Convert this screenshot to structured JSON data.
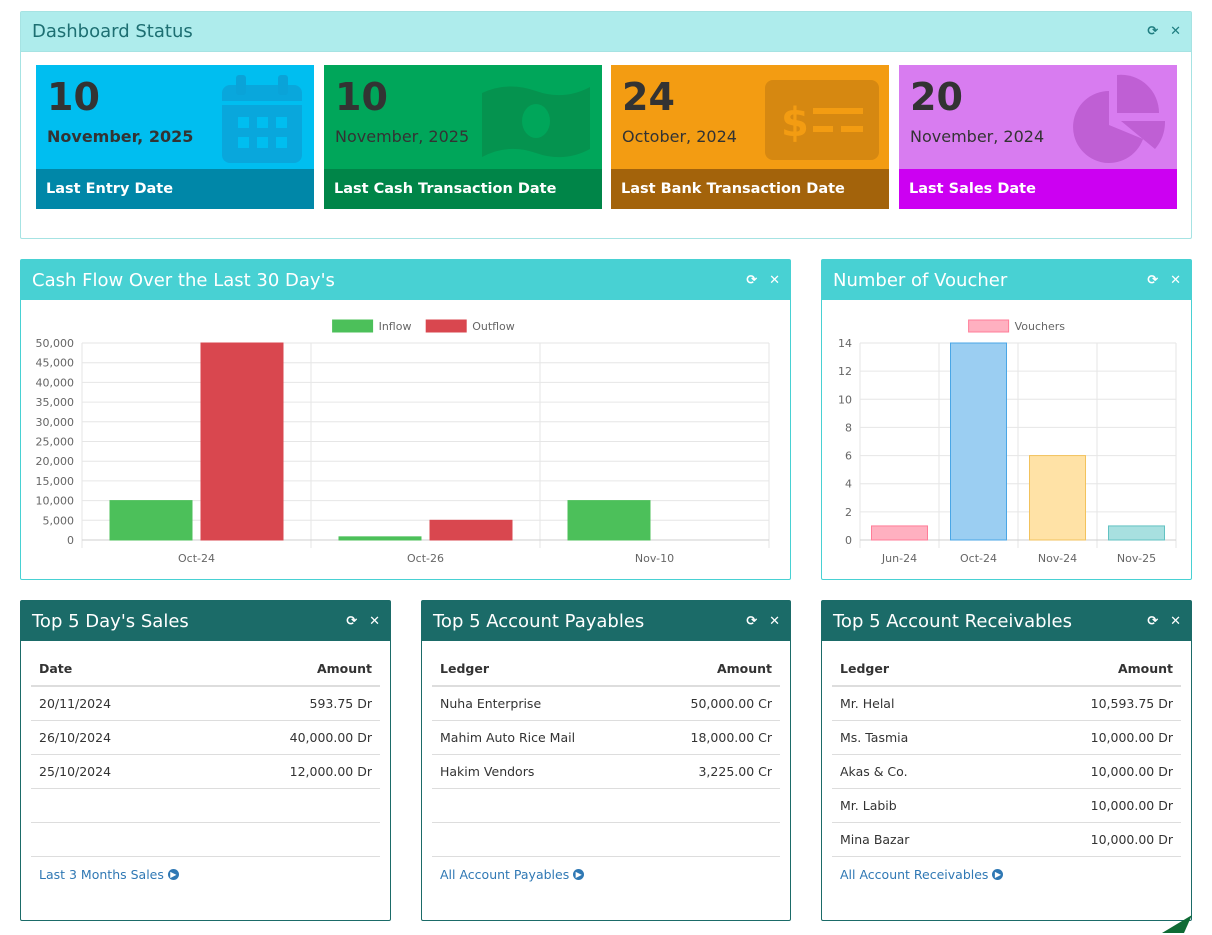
{
  "status_panel": {
    "title": "Dashboard Status",
    "cards": [
      {
        "day": "10",
        "month": "November, 2025",
        "label": "Last Entry Date",
        "color": "#00bef0",
        "footer_color": "#0087a8",
        "icon": "calendar-icon"
      },
      {
        "day": "10",
        "month": "November, 2025",
        "label": "Last Cash Transaction Date",
        "color": "#00a65a",
        "footer_color": "#008548",
        "icon": "money-icon"
      },
      {
        "day": "24",
        "month": "October, 2024",
        "label": "Last Bank Transaction Date",
        "color": "#f39c12",
        "footer_color": "#a3630b",
        "icon": "bank-card-icon"
      },
      {
        "day": "20",
        "month": "November, 2024",
        "label": "Last Sales Date",
        "color": "#d87cf0",
        "footer_color": "#cc00f2",
        "icon": "pie-chart-icon"
      }
    ]
  },
  "cashflow_panel": {
    "title": "Cash Flow Over the Last 30 Day's"
  },
  "voucher_panel": {
    "title": "Number of Voucher"
  },
  "chart_data": [
    {
      "type": "bar",
      "categories": [
        "Oct-24",
        "Oct-26",
        "Nov-10"
      ],
      "series": [
        {
          "name": "Inflow",
          "values": [
            10000,
            800,
            10000
          ],
          "color": "#4cc05a"
        },
        {
          "name": "Outflow",
          "values": [
            50000,
            5000,
            0
          ],
          "color": "#d9474f"
        }
      ],
      "ylim": [
        0,
        50000
      ],
      "yticks": [
        "0",
        "5,000",
        "10,000",
        "15,000",
        "20,000",
        "25,000",
        "30,000",
        "35,000",
        "40,000",
        "45,000",
        "50,000"
      ],
      "legend": "top",
      "grid": true
    },
    {
      "type": "bar",
      "categories": [
        "Jun-24",
        "Oct-24",
        "Nov-24",
        "Nov-25"
      ],
      "series": [
        {
          "name": "Vouchers",
          "values": [
            1,
            14,
            6,
            1
          ],
          "colors": [
            "#ffb0c0",
            "#9bcef2",
            "#ffe2a6",
            "#a8e0e0"
          ],
          "borders": [
            "#ff7d98",
            "#4aa6e6",
            "#f2c25c",
            "#62c2c2"
          ]
        }
      ],
      "ylim": [
        0,
        14
      ],
      "yticks": [
        "0",
        "2",
        "4",
        "6",
        "8",
        "10",
        "12",
        "14"
      ],
      "legend": "top",
      "grid": true
    }
  ],
  "sales_panel": {
    "title": "Top 5 Day's Sales",
    "col1": "Date",
    "col2": "Amount",
    "rows": [
      {
        "c1": "20/11/2024",
        "c2": "593.75 Dr"
      },
      {
        "c1": "26/10/2024",
        "c2": "40,000.00 Dr"
      },
      {
        "c1": "25/10/2024",
        "c2": "12,000.00 Dr"
      },
      {
        "c1": "",
        "c2": ""
      },
      {
        "c1": "",
        "c2": ""
      }
    ],
    "link": "Last 3 Months Sales"
  },
  "payables_panel": {
    "title": "Top 5 Account Payables",
    "col1": "Ledger",
    "col2": "Amount",
    "rows": [
      {
        "c1": "Nuha Enterprise",
        "c2": "50,000.00 Cr"
      },
      {
        "c1": "Mahim Auto Rice Mail",
        "c2": "18,000.00 Cr"
      },
      {
        "c1": "Hakim Vendors",
        "c2": "3,225.00 Cr"
      },
      {
        "c1": "",
        "c2": ""
      },
      {
        "c1": "",
        "c2": ""
      }
    ],
    "link": "All Account Payables"
  },
  "receivables_panel": {
    "title": "Top 5 Account Receivables",
    "col1": "Ledger",
    "col2": "Amount",
    "rows": [
      {
        "c1": "Mr. Helal",
        "c2": "10,593.75 Dr"
      },
      {
        "c1": "Ms. Tasmia",
        "c2": "10,000.00 Dr"
      },
      {
        "c1": "Akas & Co.",
        "c2": "10,000.00 Dr"
      },
      {
        "c1": "Mr. Labib",
        "c2": "10,000.00 Dr"
      },
      {
        "c1": "Mina Bazar",
        "c2": "10,000.00 Dr"
      }
    ],
    "link": "All Account Receivables"
  },
  "icons": {
    "refresh": "refresh-icon",
    "close": "close-icon",
    "circle_arrow": "circle-arrow-right-icon",
    "corner": "paper-plane-icon"
  }
}
